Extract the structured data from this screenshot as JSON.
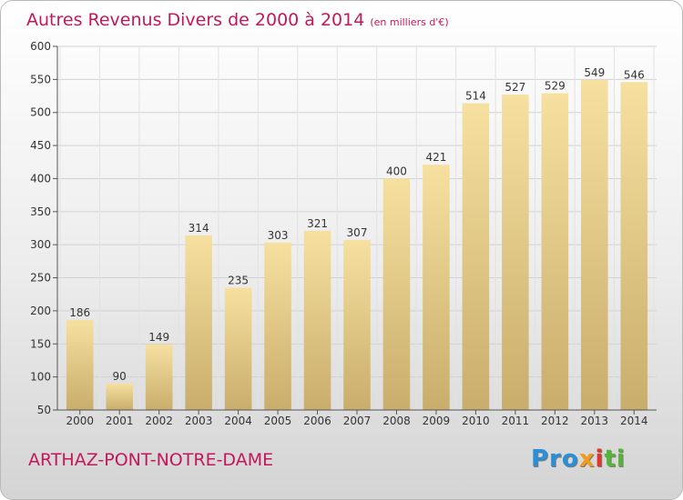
{
  "title": "Autres Revenus Divers de 2000 à 2014",
  "unit_note": "(en milliers d'€)",
  "commune": "ARTHAZ-PONT-NOTRE-DAME",
  "logo": {
    "text": "Proxiti",
    "parts": [
      "Pro",
      "x",
      "i",
      "ti"
    ]
  },
  "colors": {
    "title": "#c2185b",
    "bar_light": "#f6e0a0",
    "bar_dark": "#c9ad6c",
    "grid": "#d2d2d2"
  },
  "chart_data": {
    "type": "bar",
    "title": "Autres Revenus Divers de 2000 à 2014",
    "xlabel": "",
    "ylabel": "",
    "ylim": [
      50,
      600
    ],
    "yticks": [
      50,
      100,
      150,
      200,
      250,
      300,
      350,
      400,
      450,
      500,
      550,
      600
    ],
    "grid": true,
    "categories": [
      "2000",
      "2001",
      "2002",
      "2003",
      "2004",
      "2005",
      "2006",
      "2007",
      "2008",
      "2009",
      "2010",
      "2011",
      "2012",
      "2013",
      "2014"
    ],
    "values": [
      186,
      90,
      149,
      314,
      235,
      303,
      321,
      307,
      400,
      421,
      514,
      527,
      529,
      549,
      546
    ]
  }
}
